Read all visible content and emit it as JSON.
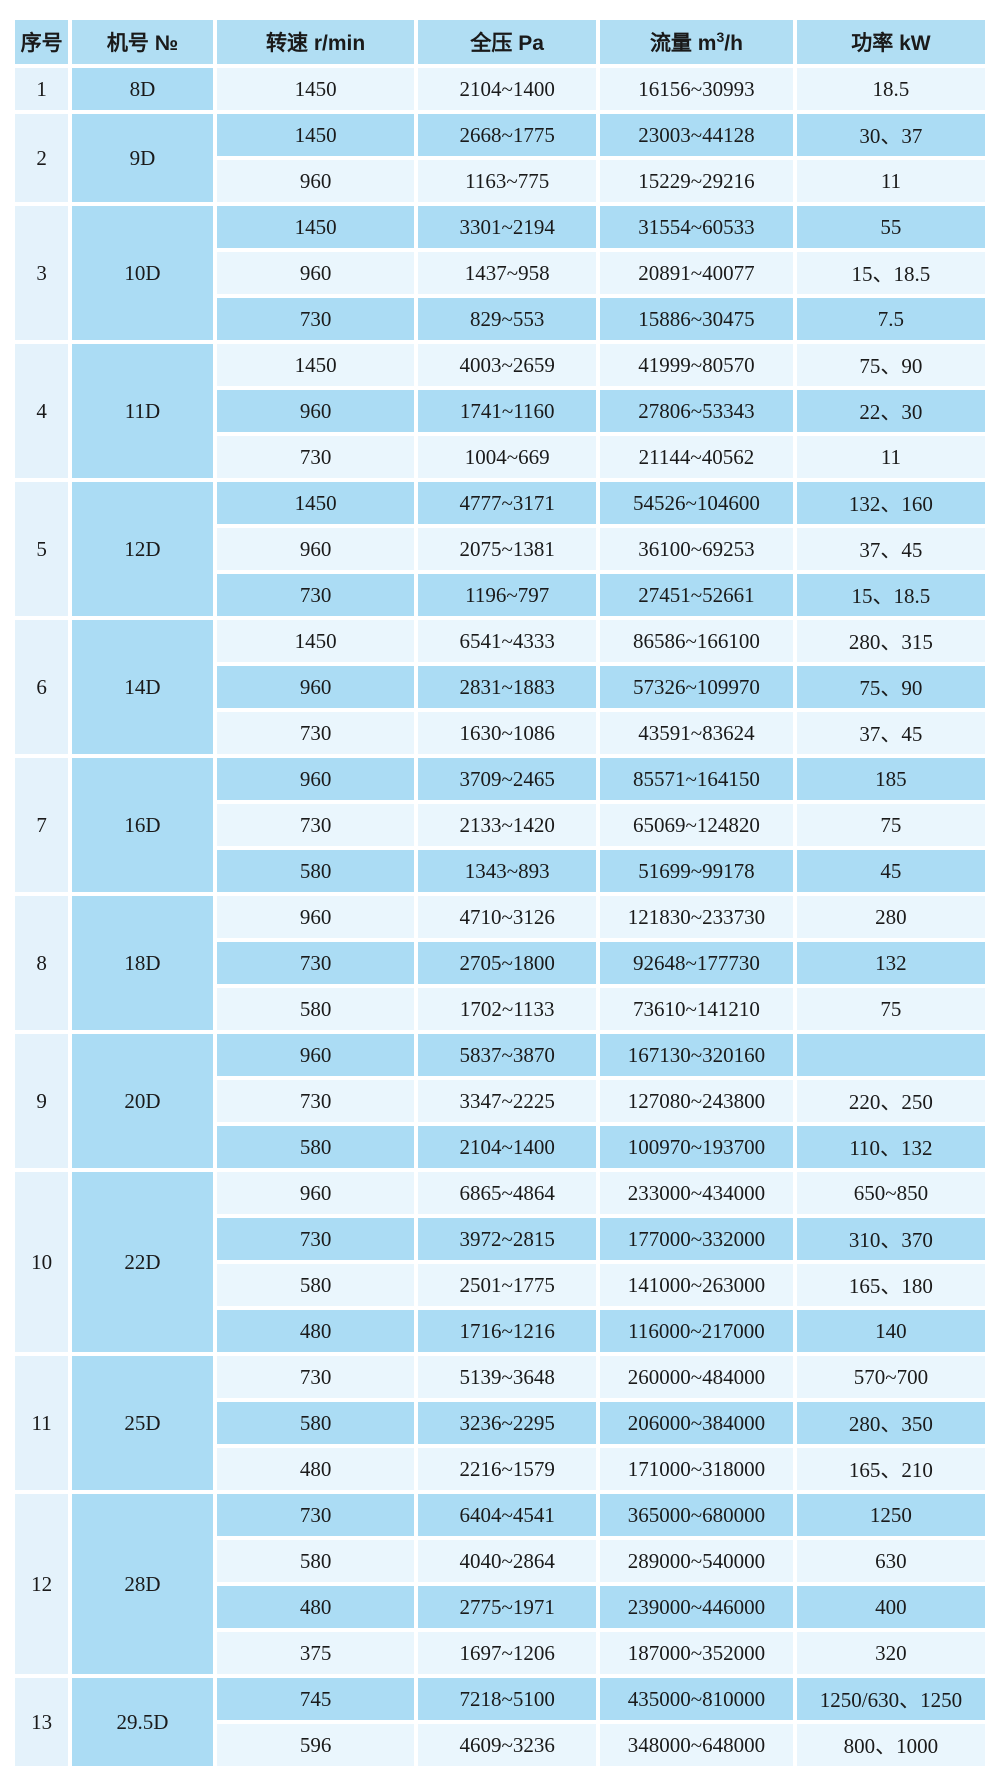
{
  "colors": {
    "header_bg": "#b1def3",
    "row_light_bg": "#eaf6fd",
    "row_dark_bg": "#abdcf4",
    "serial_col_bg": "#e4f2fb",
    "model_col_bg": "#abdcf4",
    "gap": "#ffffff",
    "text": "#1a1a1a"
  },
  "table": {
    "header": {
      "serial": "序号",
      "model": "机号 №",
      "speed": "转速 r/min",
      "pressure": "全压 Pa",
      "flow_prefix": "流量 m",
      "flow_sup": "3",
      "flow_suffix": "/h",
      "power": "功率 kW"
    },
    "groups": [
      {
        "no": "1",
        "model": "8D",
        "rows": [
          [
            "1450",
            "2104~1400",
            "16156~30993",
            "18.5"
          ]
        ]
      },
      {
        "no": "2",
        "model": "9D",
        "rows": [
          [
            "1450",
            "2668~1775",
            "23003~44128",
            "30、37"
          ],
          [
            "960",
            "1163~775",
            "15229~29216",
            "11"
          ]
        ]
      },
      {
        "no": "3",
        "model": "10D",
        "rows": [
          [
            "1450",
            "3301~2194",
            "31554~60533",
            "55"
          ],
          [
            "960",
            "1437~958",
            "20891~40077",
            "15、18.5"
          ],
          [
            "730",
            "829~553",
            "15886~30475",
            "7.5"
          ]
        ]
      },
      {
        "no": "4",
        "model": "11D",
        "rows": [
          [
            "1450",
            "4003~2659",
            "41999~80570",
            "75、90"
          ],
          [
            "960",
            "1741~1160",
            "27806~53343",
            "22、30"
          ],
          [
            "730",
            "1004~669",
            "21144~40562",
            "11"
          ]
        ]
      },
      {
        "no": "5",
        "model": "12D",
        "rows": [
          [
            "1450",
            "4777~3171",
            "54526~104600",
            "132、160"
          ],
          [
            "960",
            "2075~1381",
            "36100~69253",
            "37、45"
          ],
          [
            "730",
            "1196~797",
            "27451~52661",
            "15、18.5"
          ]
        ]
      },
      {
        "no": "6",
        "model": "14D",
        "rows": [
          [
            "1450",
            "6541~4333",
            "86586~166100",
            "280、315"
          ],
          [
            "960",
            "2831~1883",
            "57326~109970",
            "75、90"
          ],
          [
            "730",
            "1630~1086",
            "43591~83624",
            "37、45"
          ]
        ]
      },
      {
        "no": "7",
        "model": "16D",
        "rows": [
          [
            "960",
            "3709~2465",
            "85571~164150",
            "185"
          ],
          [
            "730",
            "2133~1420",
            "65069~124820",
            "75"
          ],
          [
            "580",
            "1343~893",
            "51699~99178",
            "45"
          ]
        ]
      },
      {
        "no": "8",
        "model": "18D",
        "rows": [
          [
            "960",
            "4710~3126",
            "121830~233730",
            "280"
          ],
          [
            "730",
            "2705~1800",
            "92648~177730",
            "132"
          ],
          [
            "580",
            "1702~1133",
            "73610~141210",
            "75"
          ]
        ]
      },
      {
        "no": "9",
        "model": "20D",
        "rows": [
          [
            "960",
            "5837~3870",
            "167130~320160",
            ""
          ],
          [
            "730",
            "3347~2225",
            "127080~243800",
            "220、250"
          ],
          [
            "580",
            "2104~1400",
            "100970~193700",
            "110、132"
          ]
        ]
      },
      {
        "no": "10",
        "model": "22D",
        "rows": [
          [
            "960",
            "6865~4864",
            "233000~434000",
            "650~850"
          ],
          [
            "730",
            "3972~2815",
            "177000~332000",
            "310、370"
          ],
          [
            "580",
            "2501~1775",
            "141000~263000",
            "165、180"
          ],
          [
            "480",
            "1716~1216",
            "116000~217000",
            "140"
          ]
        ]
      },
      {
        "no": "11",
        "model": "25D",
        "rows": [
          [
            "730",
            "5139~3648",
            "260000~484000",
            "570~700"
          ],
          [
            "580",
            "3236~2295",
            "206000~384000",
            "280、350"
          ],
          [
            "480",
            "2216~1579",
            "171000~318000",
            "165、210"
          ]
        ]
      },
      {
        "no": "12",
        "model": "28D",
        "rows": [
          [
            "730",
            "6404~4541",
            "365000~680000",
            "1250"
          ],
          [
            "580",
            "4040~2864",
            "289000~540000",
            "630"
          ],
          [
            "480",
            "2775~1971",
            "239000~446000",
            "400"
          ],
          [
            "375",
            "1697~1206",
            "187000~352000",
            "320"
          ]
        ]
      },
      {
        "no": "13",
        "model": "29.5D",
        "rows": [
          [
            "745",
            "7218~5100",
            "435000~810000",
            "1250/630、1250"
          ],
          [
            "596",
            "4609~3236",
            "348000~648000",
            "800、1000"
          ]
        ]
      }
    ]
  }
}
